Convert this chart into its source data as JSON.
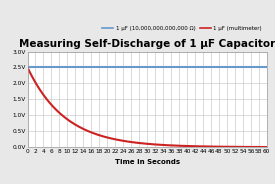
{
  "title": "Measuring Self-Discharge of 1 μF Capacitor",
  "xlabel": "Time in Seconds",
  "legend_labels": [
    "1 μF (10,000,000,000,000 Ω)",
    "1 μF (multimeter)"
  ],
  "legend_colors": [
    "#6699cc",
    "#cc2222"
  ],
  "x_max": 60,
  "x_ticks": [
    0,
    2,
    4,
    6,
    8,
    10,
    12,
    14,
    16,
    18,
    20,
    22,
    24,
    26,
    28,
    30,
    32,
    34,
    36,
    38,
    40,
    42,
    44,
    46,
    48,
    50,
    52,
    54,
    56,
    58,
    60
  ],
  "y_ticks": [
    "0.0V",
    "0.5V",
    "1.0V",
    "1.5V",
    "2.0V",
    "2.5V",
    "3.0V"
  ],
  "y_values": [
    0.0,
    0.5,
    1.0,
    1.5,
    2.0,
    2.5,
    3.0
  ],
  "flat_voltage": 2.5,
  "initial_voltage": 2.5,
  "time_constant": 9.5,
  "figure_bg_color": "#e8e8e8",
  "plot_bg_color": "#ffffff",
  "grid_color": "#cccccc",
  "title_fontsize": 7.5,
  "axis_fontsize": 5.0,
  "tick_fontsize": 4.2,
  "legend_fontsize": 4.0,
  "line_width": 1.5
}
